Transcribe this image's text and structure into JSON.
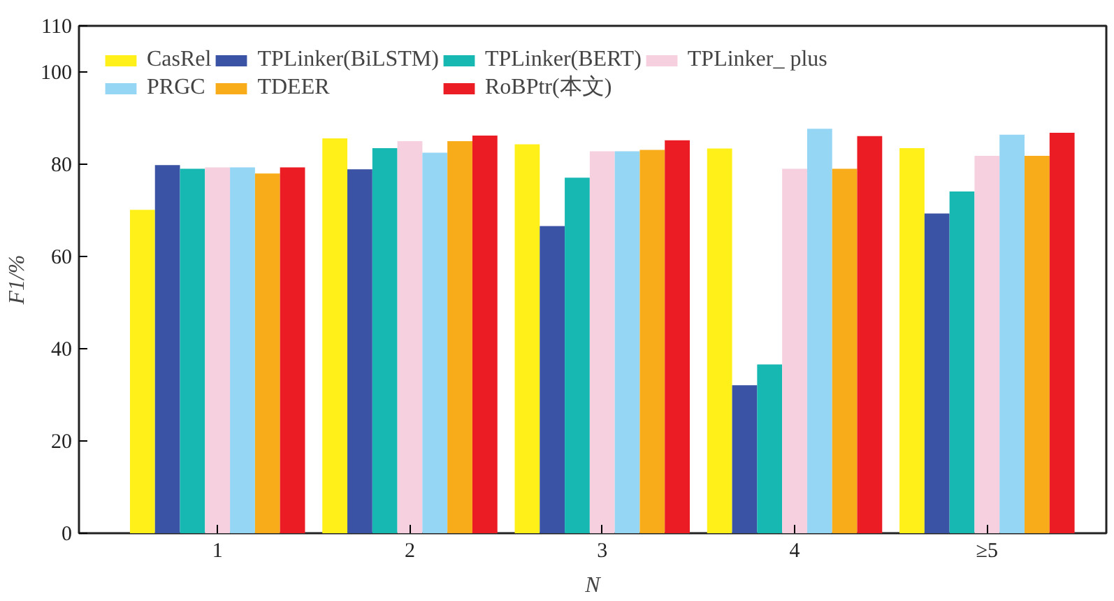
{
  "chart_data": {
    "type": "bar",
    "xlabel": "N",
    "ylabel": "F1/%",
    "categories": [
      "1",
      "2",
      "3",
      "4",
      "≥5"
    ],
    "series": [
      {
        "name": "CasRel",
        "color": "#fff01a",
        "values": [
          70.1,
          85.6,
          84.3,
          83.4,
          83.5
        ]
      },
      {
        "name": "TPLinker(BiLSTM)",
        "color": "#3a53a4",
        "values": [
          79.8,
          78.9,
          66.6,
          32.1,
          69.3
        ]
      },
      {
        "name": "TPLinker(BERT)",
        "color": "#17b8b2",
        "values": [
          79.0,
          83.5,
          77.1,
          36.6,
          74.1
        ]
      },
      {
        "name": "TPLinker_ plus",
        "color": "#f7d0df",
        "values": [
          79.3,
          85.0,
          82.8,
          79.0,
          81.8
        ]
      },
      {
        "name": "PRGC",
        "color": "#95d6f4",
        "values": [
          79.3,
          82.5,
          82.8,
          87.7,
          86.4
        ]
      },
      {
        "name": "TDEER",
        "color": "#f9ac1a",
        "values": [
          78.0,
          85.0,
          83.1,
          79.0,
          81.8
        ]
      },
      {
        "name": "RoBPtr(本文)",
        "color": "#ec1c24",
        "values": [
          79.3,
          86.2,
          85.2,
          86.1,
          86.8
        ]
      }
    ],
    "ylim": [
      0,
      110
    ],
    "yticks": [
      0,
      20,
      40,
      60,
      80,
      100,
      110
    ],
    "grid": false,
    "legend": "top left"
  }
}
